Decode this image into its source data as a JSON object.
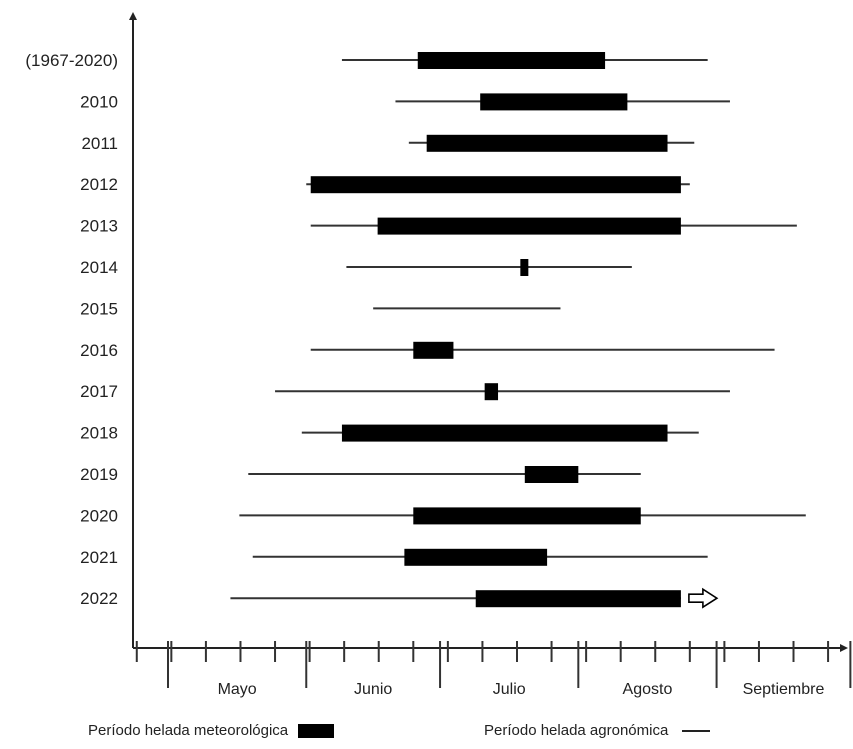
{
  "chart_data": {
    "type": "gantt",
    "x_unit": "day of year",
    "xlim": [
      115,
      273
    ],
    "months": [
      {
        "label": "Mayo",
        "start": 121,
        "end": 151
      },
      {
        "label": "Junio",
        "start": 152,
        "end": 181
      },
      {
        "label": "Julio",
        "start": 182,
        "end": 212
      },
      {
        "label": "Agosto",
        "start": 213,
        "end": 243
      },
      {
        "label": "Septiembre",
        "start": 244,
        "end": 273
      }
    ],
    "rows": [
      {
        "label": "(1967-2020)",
        "agronomica": [
          160,
          242
        ],
        "meteorologica": [
          177,
          219
        ],
        "open_end": false
      },
      {
        "label": "2010",
        "agronomica": [
          172,
          247
        ],
        "meteorologica": [
          191,
          224
        ],
        "open_end": false
      },
      {
        "label": "2011",
        "agronomica": [
          175,
          239
        ],
        "meteorologica": [
          179,
          233
        ],
        "open_end": false
      },
      {
        "label": "2012",
        "agronomica": [
          152,
          238
        ],
        "meteorologica": [
          153,
          236
        ],
        "open_end": false
      },
      {
        "label": "2013",
        "agronomica": [
          153,
          262
        ],
        "meteorologica": [
          168,
          236
        ],
        "open_end": false
      },
      {
        "label": "2014",
        "agronomica": [
          161,
          225
        ],
        "meteorologica": [
          200,
          201
        ],
        "open_end": false
      },
      {
        "label": "2015",
        "agronomica": [
          167,
          209
        ],
        "meteorologica": null,
        "open_end": false
      },
      {
        "label": "2016",
        "agronomica": [
          153,
          257
        ],
        "meteorologica": [
          176,
          185
        ],
        "open_end": false
      },
      {
        "label": "2017",
        "agronomica": [
          145,
          247
        ],
        "meteorologica": [
          192,
          195
        ],
        "open_end": false
      },
      {
        "label": "2018",
        "agronomica": [
          151,
          240
        ],
        "meteorologica": [
          160,
          233
        ],
        "open_end": false
      },
      {
        "label": "2019",
        "agronomica": [
          139,
          227
        ],
        "meteorologica": [
          201,
          213
        ],
        "open_end": false
      },
      {
        "label": "2020",
        "agronomica": [
          137,
          264
        ],
        "meteorologica": [
          176,
          227
        ],
        "open_end": false
      },
      {
        "label": "2021",
        "agronomica": [
          140,
          242
        ],
        "meteorologica": [
          174,
          206
        ],
        "open_end": false
      },
      {
        "label": "2022",
        "agronomica": [
          135,
          236
        ],
        "meteorologica": [
          190,
          236
        ],
        "open_end": true
      }
    ]
  },
  "legend": {
    "meteorologica_label": "Período helada meteorológica",
    "agronomica_label": "Período helada agronómica"
  }
}
